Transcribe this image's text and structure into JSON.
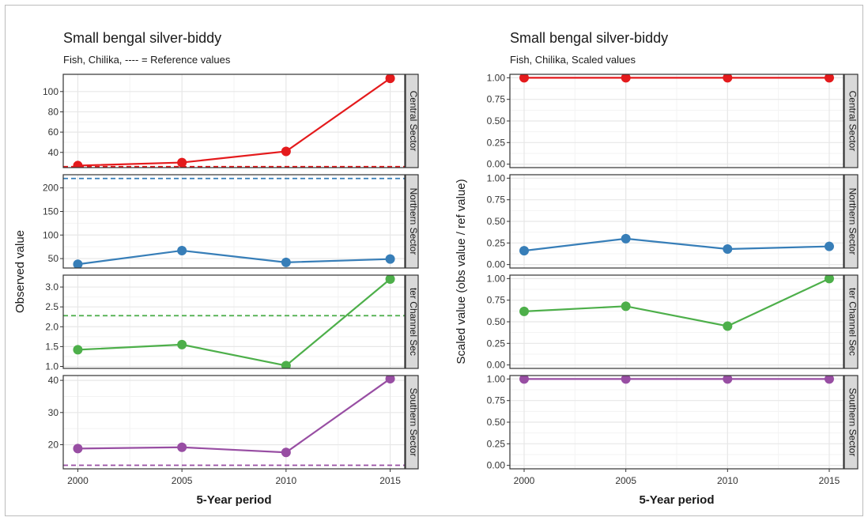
{
  "chart_data": [
    {
      "type": "line",
      "title": "Small bengal silver-biddy",
      "subtitle": "Fish, Chilika, ---- = Reference values",
      "xlabel": "5-Year period",
      "ylabel": "Observed value",
      "x": [
        2000,
        2005,
        2010,
        2015
      ],
      "xlim": [
        1999.3,
        2015.7
      ],
      "grid": true,
      "panels": [
        {
          "strip": "Central Sector",
          "color": "#e41a1c",
          "values": [
            27,
            30,
            41,
            113
          ],
          "reference": 26,
          "ylim": [
            25,
            117
          ],
          "ticks": [
            40,
            60,
            80,
            100
          ],
          "tick_labels": [
            "40",
            "60",
            "80",
            "100"
          ]
        },
        {
          "strip": "Northern Sector",
          "color": "#377eb8",
          "values": [
            38,
            67,
            42,
            49
          ],
          "reference": 220,
          "ylim": [
            30,
            228
          ],
          "ticks": [
            50,
            100,
            150,
            200
          ],
          "tick_labels": [
            "50",
            "100",
            "150",
            "200"
          ]
        },
        {
          "strip": "ter Channel Sec",
          "color": "#4daf4a",
          "values": [
            1.42,
            1.55,
            1.02,
            3.2
          ],
          "reference": 2.28,
          "ylim": [
            0.95,
            3.3
          ],
          "ticks": [
            1.0,
            1.5,
            2.0,
            2.5,
            3.0
          ],
          "tick_labels": [
            "1.0",
            "1.5",
            "2.0",
            "2.5",
            "3.0"
          ]
        },
        {
          "strip": "Southern Sector",
          "color": "#984ea3",
          "values": [
            18.8,
            19.2,
            17.6,
            40.5
          ],
          "reference": 13.6,
          "ylim": [
            12.5,
            41.5
          ],
          "ticks": [
            20,
            30,
            40
          ],
          "tick_labels": [
            "20",
            "30",
            "40"
          ]
        }
      ]
    },
    {
      "type": "line",
      "title": "Small bengal silver-biddy",
      "subtitle": "Fish, Chilika, Scaled values",
      "xlabel": "5-Year period",
      "ylabel": "Scaled value (obs value / ref value)",
      "x": [
        2000,
        2005,
        2010,
        2015
      ],
      "xlim": [
        1999.3,
        2015.7
      ],
      "grid": true,
      "panels": [
        {
          "strip": "Central Sector",
          "color": "#e41a1c",
          "values": [
            1.0,
            1.0,
            1.0,
            1.0
          ],
          "ylim": [
            -0.04,
            1.04
          ],
          "ticks": [
            0,
            0.25,
            0.5,
            0.75,
            1.0
          ],
          "tick_labels": [
            "0.00",
            "0.25",
            "0.50",
            "0.75",
            "1.00"
          ]
        },
        {
          "strip": "Northern Sector",
          "color": "#377eb8",
          "values": [
            0.16,
            0.3,
            0.18,
            0.21
          ],
          "ylim": [
            -0.04,
            1.04
          ],
          "ticks": [
            0,
            0.25,
            0.5,
            0.75,
            1.0
          ],
          "tick_labels": [
            "0.00",
            "0.25",
            "0.50",
            "0.75",
            "1.00"
          ]
        },
        {
          "strip": "ter Channel Sec",
          "color": "#4daf4a",
          "values": [
            0.62,
            0.68,
            0.45,
            1.0
          ],
          "ylim": [
            -0.04,
            1.04
          ],
          "ticks": [
            0,
            0.25,
            0.5,
            0.75,
            1.0
          ],
          "tick_labels": [
            "0.00",
            "0.25",
            "0.50",
            "0.75",
            "1.00"
          ]
        },
        {
          "strip": "Southern Sector",
          "color": "#984ea3",
          "values": [
            1.0,
            1.0,
            1.0,
            1.0
          ],
          "ylim": [
            -0.04,
            1.04
          ],
          "ticks": [
            0,
            0.25,
            0.5,
            0.75,
            1.0
          ],
          "tick_labels": [
            "0.00",
            "0.25",
            "0.50",
            "0.75",
            "1.00"
          ]
        }
      ]
    }
  ]
}
